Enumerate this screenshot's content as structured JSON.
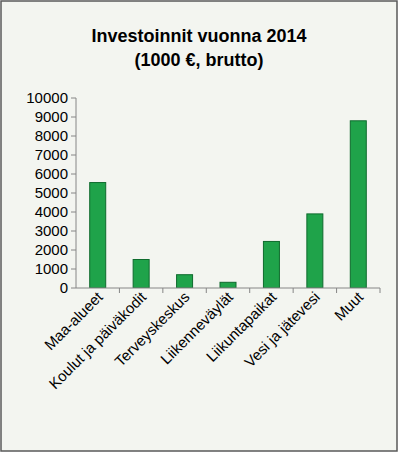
{
  "chart_data": {
    "type": "bar",
    "title": "Investoinnit vuonna 2014",
    "subtitle": "(1000 €, brutto)",
    "categories": [
      "Maa-alueet",
      "Koulut ja päiväkodit",
      "Terveyskeskus",
      "Liikenneväylät",
      "Liikuntapaikat",
      "Vesi ja jätevesi",
      "Muut"
    ],
    "values": [
      5550,
      1500,
      700,
      300,
      2450,
      3900,
      8800
    ],
    "color": "#1fa34a",
    "ylim": [
      0,
      10000
    ],
    "yticks": [
      0,
      1000,
      2000,
      3000,
      4000,
      5000,
      6000,
      7000,
      8000,
      9000,
      10000
    ],
    "grid": false
  }
}
